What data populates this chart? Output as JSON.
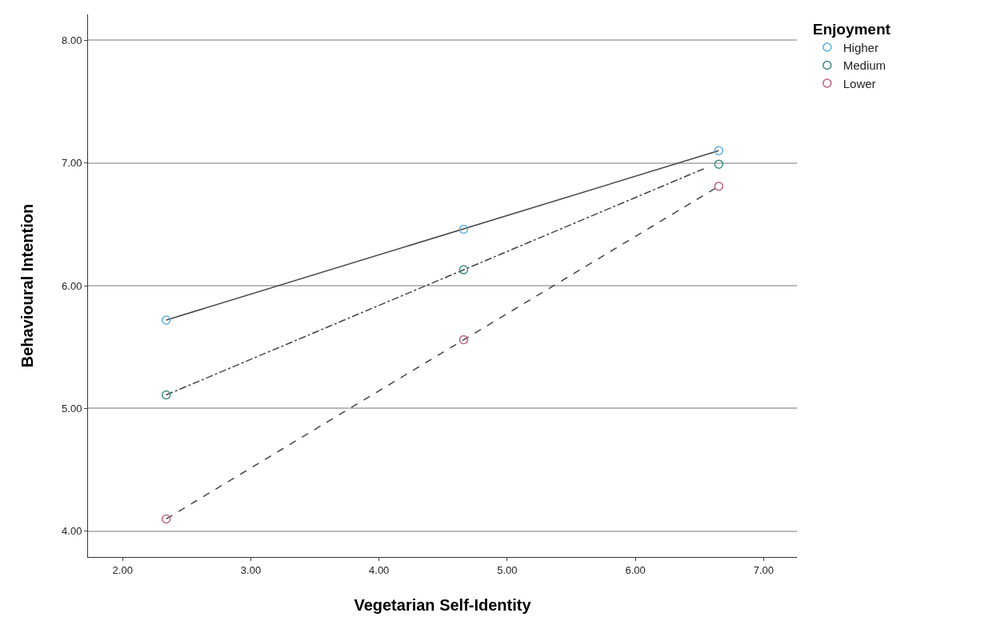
{
  "chart_data": {
    "type": "scatter",
    "xlabel": "Vegetarian Self-Identity",
    "ylabel": "Behavioural Intention",
    "legend_title": "Enjoyment",
    "legend": "top right",
    "grid": "y",
    "marker": "circle",
    "xlim": [
      1.73,
      7.26
    ],
    "ylim": [
      3.79,
      8.21
    ],
    "xticks": [
      {
        "value": 2,
        "label": "2.00"
      },
      {
        "value": 3,
        "label": "3.00"
      },
      {
        "value": 4,
        "label": "4.00"
      },
      {
        "value": 5,
        "label": "5.00"
      },
      {
        "value": 6,
        "label": "6.00"
      },
      {
        "value": 7,
        "label": "7.00"
      }
    ],
    "yticks": [
      {
        "value": 4,
        "label": "4.00"
      },
      {
        "value": 5,
        "label": "5.00"
      },
      {
        "value": 6,
        "label": "6.00"
      },
      {
        "value": 7,
        "label": "7.00"
      },
      {
        "value": 8,
        "label": "8.00"
      }
    ],
    "series": [
      {
        "type": "line",
        "color": "#444444",
        "line_style": "solid",
        "marker": "none",
        "x": [
          2.34,
          6.65
        ],
        "values": [
          5.72,
          7.1
        ]
      },
      {
        "type": "line",
        "color": "#444444",
        "line_style": "dashdot",
        "marker": "none",
        "x": [
          2.34,
          6.55
        ],
        "values": [
          5.11,
          6.96
        ]
      },
      {
        "type": "line",
        "color": "#444444",
        "line_style": "dashed",
        "marker": "none",
        "x": [
          2.34,
          6.65
        ],
        "values": [
          4.1,
          6.81
        ]
      },
      {
        "name": "Higher",
        "color": "#5aaee0",
        "x": [
          2.34,
          4.66,
          6.65
        ],
        "values": [
          5.72,
          6.46,
          7.1
        ]
      },
      {
        "name": "Medium",
        "color": "#3d8a80",
        "x": [
          2.34,
          4.66,
          6.65
        ],
        "values": [
          5.11,
          6.13,
          6.99
        ]
      },
      {
        "name": "Lower",
        "color": "#c0607f",
        "x": [
          2.34,
          4.66,
          6.65
        ],
        "values": [
          4.1,
          5.56,
          6.81
        ]
      }
    ]
  }
}
